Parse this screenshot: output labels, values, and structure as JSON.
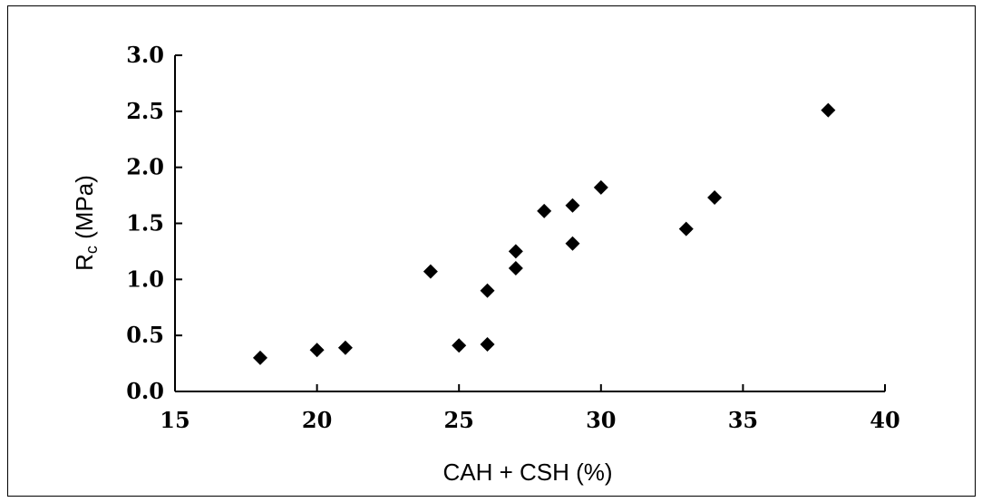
{
  "chart_data": {
    "type": "scatter",
    "title": "",
    "xlabel": "CAH + CSH (%)",
    "ylabel": {
      "main": "R",
      "sub": "c",
      "rest": " (MPa)"
    },
    "xlim": [
      15,
      40
    ],
    "ylim": [
      0,
      3
    ],
    "x_ticks": [
      15,
      20,
      25,
      30,
      35,
      40
    ],
    "x_tick_labels": [
      "15",
      "20",
      "25",
      "30",
      "35",
      "40"
    ],
    "y_ticks": [
      0,
      0.5,
      1,
      1.5,
      2,
      2.5,
      3
    ],
    "y_tick_labels": [
      "0.0",
      "0.5",
      "1.0",
      "1.5",
      "2.0",
      "2.5",
      "3.0"
    ],
    "grid": false,
    "legend": "none",
    "marker": "diamond",
    "marker_color": "#000000",
    "points": [
      {
        "x": 18,
        "y": 0.3
      },
      {
        "x": 20,
        "y": 0.37
      },
      {
        "x": 21,
        "y": 0.39
      },
      {
        "x": 24,
        "y": 1.07
      },
      {
        "x": 25,
        "y": 0.41
      },
      {
        "x": 26,
        "y": 0.42
      },
      {
        "x": 26,
        "y": 0.9
      },
      {
        "x": 27,
        "y": 1.1
      },
      {
        "x": 27,
        "y": 1.25
      },
      {
        "x": 28,
        "y": 1.61
      },
      {
        "x": 29,
        "y": 1.32
      },
      {
        "x": 29,
        "y": 1.66
      },
      {
        "x": 30,
        "y": 1.82
      },
      {
        "x": 33,
        "y": 1.45
      },
      {
        "x": 34,
        "y": 1.73
      },
      {
        "x": 38,
        "y": 2.51
      }
    ]
  }
}
